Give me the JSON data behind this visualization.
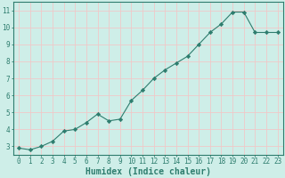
{
  "x": [
    0,
    1,
    2,
    3,
    4,
    5,
    6,
    7,
    8,
    9,
    10,
    11,
    12,
    13,
    14,
    15,
    16,
    17,
    18,
    19,
    20,
    21,
    22,
    23
  ],
  "y": [
    2.9,
    2.8,
    3.0,
    3.3,
    3.9,
    4.0,
    4.4,
    4.9,
    4.5,
    4.6,
    5.7,
    6.3,
    7.0,
    7.5,
    7.9,
    8.3,
    9.0,
    9.7,
    10.2,
    10.9,
    10.9,
    9.7,
    9.7,
    9.7
  ],
  "line_color": "#2e7d6e",
  "marker": "D",
  "markersize": 2.2,
  "linewidth": 0.8,
  "xlabel": "Humidex (Indice chaleur)",
  "xlabel_fontsize": 7,
  "tick_fontsize": 5.5,
  "ylim": [
    2.5,
    11.5
  ],
  "yticks": [
    3,
    4,
    5,
    6,
    7,
    8,
    9,
    10,
    11
  ],
  "xlim": [
    -0.5,
    23.5
  ],
  "bg_color": "#ceeee8",
  "grid_color": "#f0c8c8",
  "axes_color": "#2e7d6e",
  "label_color": "#2e7d6e"
}
